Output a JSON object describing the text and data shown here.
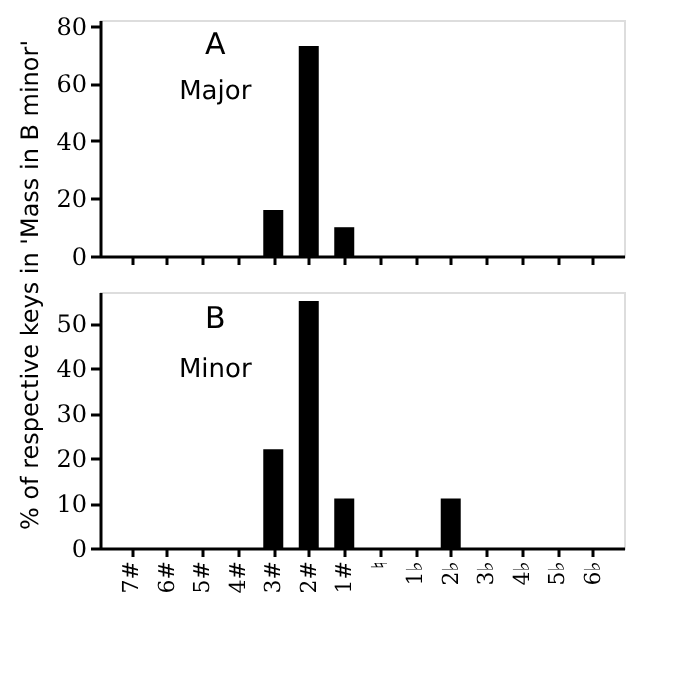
{
  "chart_data": [
    {
      "type": "bar",
      "categories": [
        null,
        null,
        null,
        null,
        null,
        null,
        null,
        null,
        null,
        null,
        null,
        null,
        null,
        null
      ],
      "series": [
        {
          "color": "#000000",
          "values": [
            0,
            0,
            0,
            0,
            16,
            73,
            10,
            0,
            0,
            0,
            0,
            0,
            0,
            0
          ]
        }
      ],
      "ylim": [
        0,
        82
      ],
      "yticks": [
        0,
        20,
        40,
        60,
        80
      ],
      "grid": false,
      "tick_labels": "y",
      "annotations": [
        "A",
        "Major"
      ]
    },
    {
      "type": "bar",
      "categories": [
        "7#",
        "6#",
        "5#",
        "4#",
        "3#",
        "2#",
        "1#",
        "♮",
        "1♭",
        "2♭",
        "3♭",
        "4♭",
        "5♭",
        "6♭"
      ],
      "series": [
        {
          "color": "#000000",
          "values": [
            0,
            0,
            0,
            0,
            22,
            55,
            11,
            0,
            0,
            11,
            0,
            0,
            0,
            0
          ]
        }
      ],
      "ylim": [
        0,
        57
      ],
      "yticks": [
        0,
        10,
        20,
        30,
        40,
        50
      ],
      "grid": false,
      "ylabel": "% of respective keys  in 'Mass in B minor'",
      "annotations": [
        "B",
        "Minor"
      ]
    }
  ]
}
